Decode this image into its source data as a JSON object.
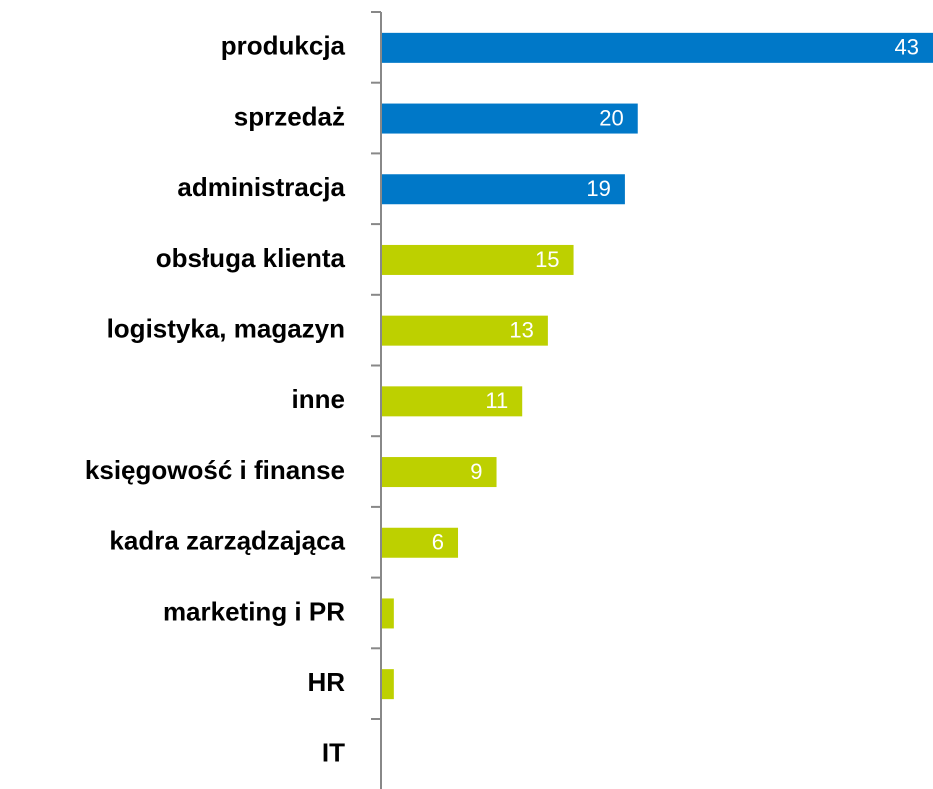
{
  "chart_data": {
    "type": "bar",
    "orientation": "horizontal",
    "categories": [
      "produkcja",
      "sprzedaż",
      "administracja",
      "obsługa klienta",
      "logistyka, magazyn",
      "inne",
      "księgowość i finanse",
      "kadra zarządzająca",
      "marketing i PR",
      "HR",
      "IT"
    ],
    "values": [
      43,
      20,
      19,
      15,
      13,
      11,
      9,
      6,
      1,
      1,
      0
    ],
    "colors": [
      "#0078c8",
      "#0078c8",
      "#0078c8",
      "#bdd000",
      "#bdd000",
      "#bdd000",
      "#bdd000",
      "#bdd000",
      "#bdd000",
      "#bdd000",
      "#bdd000"
    ],
    "xlim": [
      0,
      43
    ]
  }
}
